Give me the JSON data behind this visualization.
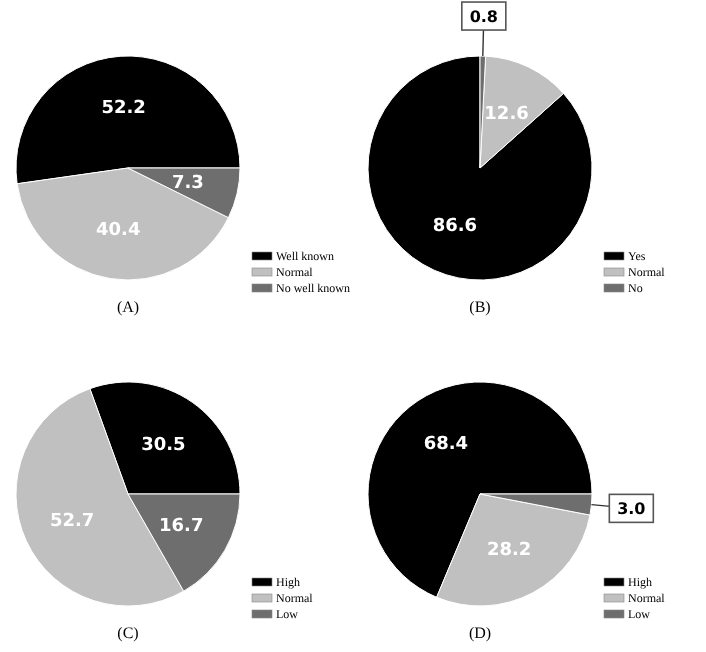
{
  "chart_data": [
    {
      "type": "pie",
      "title": "(A)",
      "categories": [
        "Well known",
        "Normal",
        "No well known"
      ],
      "values": [
        52.2,
        40.4,
        7.3
      ],
      "colors": [
        "#000000",
        "#c0c0c0",
        "#6e6e6e"
      ],
      "data_labels": true,
      "legend": "bottom right"
    },
    {
      "type": "pie",
      "title": "(B)",
      "categories": [
        "Yes",
        "Normal",
        "No"
      ],
      "values": [
        86.6,
        12.6,
        0.8
      ],
      "colors": [
        "#000000",
        "#c0c0c0",
        "#6e6e6e"
      ],
      "data_labels": true,
      "legend": "bottom right"
    },
    {
      "type": "pie",
      "title": "(C)",
      "categories": [
        "High",
        "Normal",
        "Low"
      ],
      "values": [
        30.5,
        52.7,
        16.7
      ],
      "colors": [
        "#000000",
        "#c0c0c0",
        "#6e6e6e"
      ],
      "data_labels": true,
      "legend": "bottom right"
    },
    {
      "type": "pie",
      "title": "(D)",
      "categories": [
        "High",
        "Normal",
        "Low"
      ],
      "values": [
        68.4,
        28.2,
        3.0
      ],
      "value_labels": [
        "68.4",
        "28.2",
        "3.0"
      ],
      "colors": [
        "#000000",
        "#c0c0c0",
        "#6e6e6e"
      ],
      "legend": "bottom right"
    }
  ]
}
